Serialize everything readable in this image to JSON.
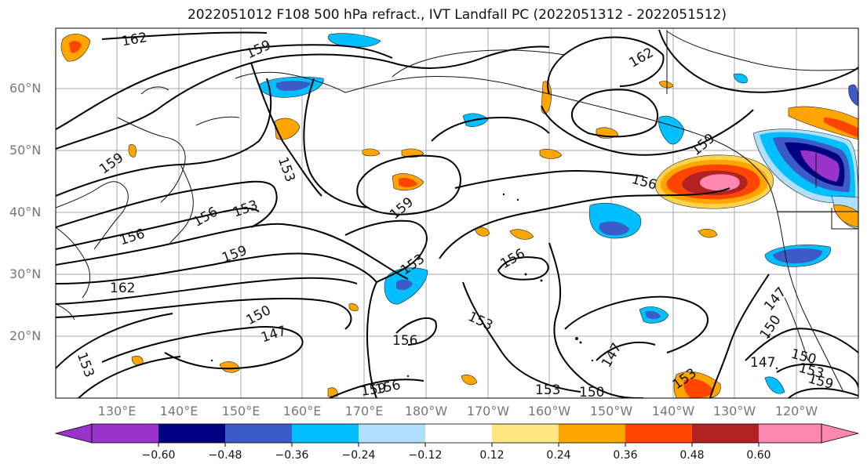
{
  "title": "2022051012 F108 500 hPa refract., IVT Landfall PC (2022051312 - 2022051512)",
  "latitude_labels": [
    "60°N",
    "50°N",
    "40°N",
    "30°N",
    "20°N"
  ],
  "longitude_labels": [
    "130°E",
    "140°E",
    "150°E",
    "160°E",
    "170°E",
    "180°W",
    "170°W",
    "160°W",
    "150°W",
    "140°W",
    "130°W",
    "120°W"
  ],
  "contour_labels": [
    "162",
    "159",
    "162",
    "159",
    "153",
    "159",
    "156",
    "159",
    "153",
    "156",
    "159",
    "156",
    "153",
    "156",
    "162",
    "150",
    "147",
    "153",
    "156",
    "156",
    "159",
    "153",
    "150",
    "147",
    "153",
    "150",
    "147",
    "150",
    "153",
    "159"
  ],
  "colorbar": {
    "tick_labels": [
      "-0.60",
      "-0.48",
      "-0.36",
      "-0.24",
      "-0.12",
      "0.12",
      "0.24",
      "0.36",
      "0.48",
      "0.60"
    ],
    "colors": [
      "#9933cc",
      "#000080",
      "#3b5bc8",
      "#00bfff",
      "#b0e0ff",
      "#ffffff",
      "#ffe680",
      "#ffa500",
      "#ff4500",
      "#b22222",
      "#ff88b0"
    ]
  }
}
